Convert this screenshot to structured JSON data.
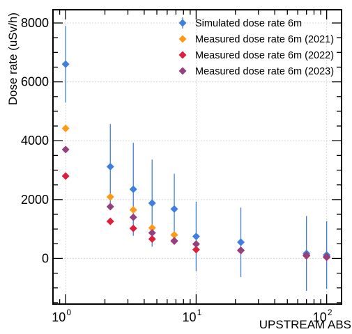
{
  "chart_data": {
    "type": "scatter",
    "title": "",
    "xlabel": "UPSTREAM ABS",
    "ylabel": "Dose rate (uSv/h)",
    "x_scale": "log",
    "xlim": [
      0.8,
      130
    ],
    "ylim": [
      -1550,
      8450
    ],
    "grid": true,
    "legend_position": "top-right",
    "x_ticks": [
      {
        "base": "10",
        "exp": "0",
        "value": 1
      },
      {
        "base": "10",
        "exp": "1",
        "value": 10
      },
      {
        "base": "10",
        "exp": "2",
        "value": 100
      }
    ],
    "y_ticks": [
      {
        "label": "0",
        "value": 0
      },
      {
        "label": "2000",
        "value": 2000
      },
      {
        "label": "4000",
        "value": 4000
      },
      {
        "label": "6000",
        "value": 6000
      },
      {
        "label": "8000",
        "value": 8000
      }
    ],
    "series": [
      {
        "name": "Simulated dose rate 6m",
        "color": "#3f7fe0",
        "points": [
          {
            "x": 1,
            "y": 6600,
            "err": 1300
          },
          {
            "x": 2.2,
            "y": 3120,
            "err": 1450
          },
          {
            "x": 3.3,
            "y": 2350,
            "err": 1580
          },
          {
            "x": 4.6,
            "y": 1880,
            "err": 1480
          },
          {
            "x": 6.8,
            "y": 1680,
            "err": 1200
          },
          {
            "x": 10,
            "y": 750,
            "err": 1180
          },
          {
            "x": 22,
            "y": 550,
            "err": 1180
          },
          {
            "x": 70,
            "y": 170,
            "err": 1270
          },
          {
            "x": 100,
            "y": 120,
            "err": 1150
          }
        ]
      },
      {
        "name": "Measured dose rate 6m (2021)",
        "color": "#ff9a18",
        "points": [
          {
            "x": 1,
            "y": 4420
          },
          {
            "x": 2.2,
            "y": 2090
          },
          {
            "x": 3.3,
            "y": 1650
          },
          {
            "x": 4.6,
            "y": 1040
          },
          {
            "x": 6.8,
            "y": 800
          }
        ]
      },
      {
        "name": "Measured dose rate 6m (2022)",
        "color": "#de1e3c",
        "points": [
          {
            "x": 1,
            "y": 2800
          },
          {
            "x": 2.2,
            "y": 1260
          },
          {
            "x": 3.3,
            "y": 1020
          },
          {
            "x": 4.6,
            "y": 660
          },
          {
            "x": 6.8,
            "y": 590
          },
          {
            "x": 10,
            "y": 300
          },
          {
            "x": 22,
            "y": 270
          },
          {
            "x": 70,
            "y": 90
          },
          {
            "x": 100,
            "y": 40
          }
        ]
      },
      {
        "name": "Measured dose rate 6m (2023)",
        "color": "#93407e",
        "points": [
          {
            "x": 1,
            "y": 3700
          },
          {
            "x": 2.2,
            "y": 1760
          },
          {
            "x": 3.3,
            "y": 1400
          },
          {
            "x": 4.6,
            "y": 870
          },
          {
            "x": 6.8,
            "y": 600
          },
          {
            "x": 10,
            "y": 490
          },
          {
            "x": 22,
            "y": 280
          },
          {
            "x": 70,
            "y": 110
          },
          {
            "x": 100,
            "y": 60
          }
        ]
      }
    ]
  }
}
